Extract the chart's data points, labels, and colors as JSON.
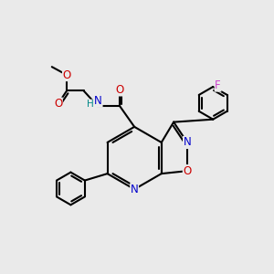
{
  "bg_color": "#eaeaea",
  "line_color": "#000000",
  "bond_lw": 1.5,
  "colors": {
    "N": "#0000cc",
    "O": "#cc0000",
    "F": "#cc44cc",
    "H": "#008888"
  },
  "fs": 8.5,
  "fs_small": 7.5
}
